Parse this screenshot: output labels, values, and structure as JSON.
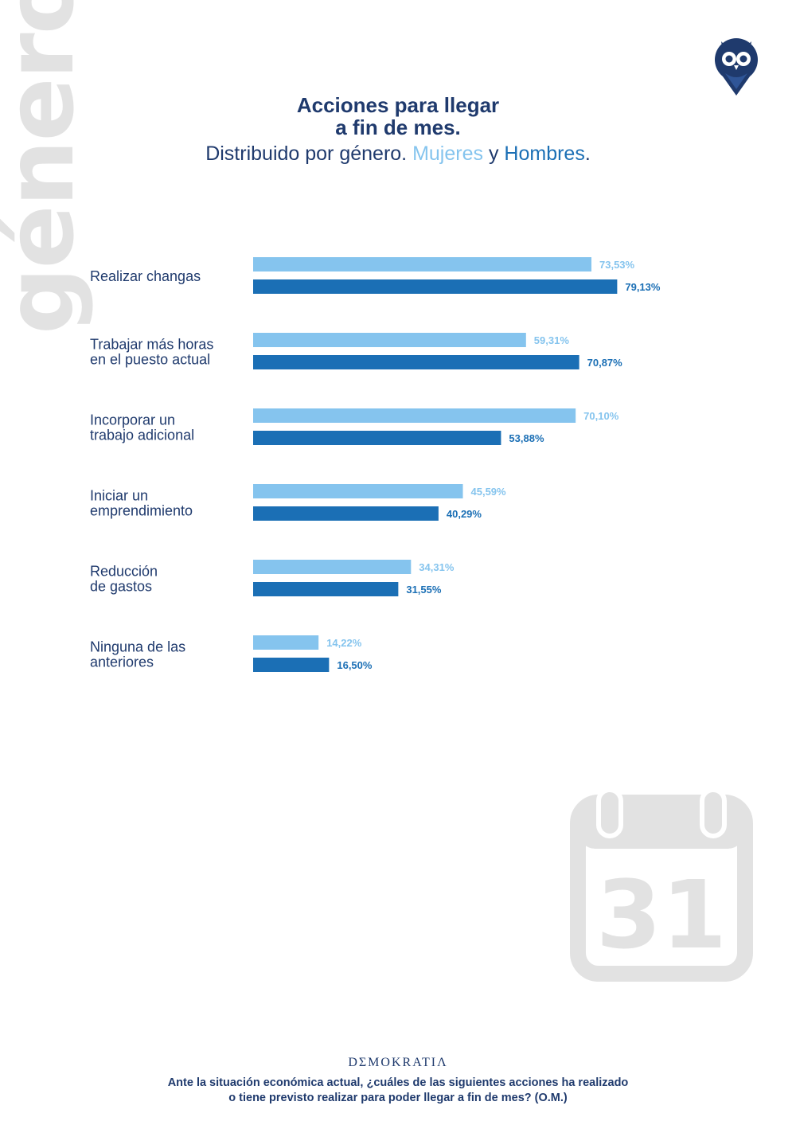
{
  "side_word": "género",
  "header": {
    "title_lines": [
      "Acciones para llegar",
      "a fin de mes."
    ],
    "subtitle_prefix": "Distribuido por género. ",
    "subtitle_women": "Mujeres",
    "subtitle_and": " y ",
    "subtitle_men": "Hombres",
    "subtitle_end": "."
  },
  "colors": {
    "women": "#85c4ee",
    "men": "#1b6fb5",
    "text": "#1f3a6d",
    "watermark": "#e2e2e2"
  },
  "chart_data": {
    "type": "bar",
    "orientation": "horizontal",
    "categories": [
      [
        "Realizar changas"
      ],
      [
        "Trabajar más horas",
        "en el puesto actual"
      ],
      [
        "Incorporar un",
        "trabajo adicional"
      ],
      [
        "Iniciar un",
        "emprendimiento"
      ],
      [
        "Reducción",
        "de gastos"
      ],
      [
        "Ninguna de las",
        "anteriores"
      ]
    ],
    "series": [
      {
        "name": "Mujeres",
        "values": [
          73.53,
          59.31,
          70.1,
          45.59,
          34.31,
          14.22
        ],
        "labels": [
          "73,53%",
          "59,31%",
          "70,10%",
          "45,59%",
          "34,31%",
          "14,22%"
        ]
      },
      {
        "name": "Hombres",
        "values": [
          79.13,
          70.87,
          53.88,
          40.29,
          31.55,
          16.5
        ],
        "labels": [
          "79,13%",
          "70,87%",
          "53,88%",
          "40,29%",
          "31,55%",
          "16,50%"
        ]
      }
    ],
    "xlim": [
      0,
      100
    ],
    "grid": false,
    "legend": "in subtitle"
  },
  "calendar_icon": {
    "icon": "calendar-icon",
    "day": "31"
  },
  "footer": {
    "brand": "DΣMOKRATIΛ",
    "question_lines": [
      "Ante la situación económica actual, ¿cuáles de las siguientes acciones ha realizado",
      "o tiene previsto realizar para poder llegar a fin de mes? (O.M.)"
    ]
  }
}
